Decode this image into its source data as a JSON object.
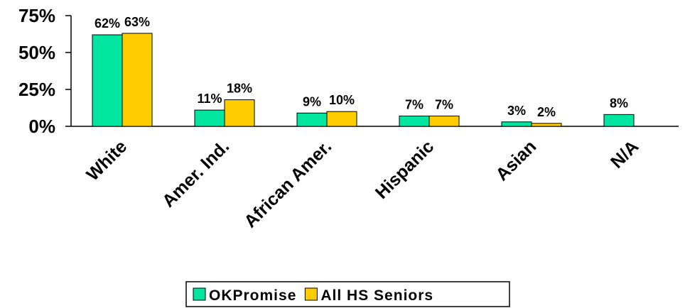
{
  "chart_data": {
    "type": "bar",
    "categories": [
      "White",
      "Amer. Ind.",
      "African Amer.",
      "Hispanic",
      "Asian",
      "N/A"
    ],
    "series": [
      {
        "name": "OKPromise",
        "color": "#00e6a0",
        "values": [
          62,
          11,
          9,
          7,
          3,
          8
        ],
        "value_labels": [
          "62%",
          "11%",
          "9%",
          "7%",
          "3%",
          "8%"
        ]
      },
      {
        "name": "All HS Seniors",
        "color": "#ffcc00",
        "values": [
          63,
          18,
          10,
          7,
          2,
          null
        ],
        "value_labels": [
          "63%",
          "18%",
          "10%",
          "7%",
          "2%",
          null
        ]
      }
    ],
    "ylim": [
      0,
      75
    ],
    "yticks": [
      {
        "value": 0,
        "label": "0%"
      },
      {
        "value": 25,
        "label": "25%"
      },
      {
        "value": 50,
        "label": "50%"
      },
      {
        "value": 75,
        "label": "75%"
      }
    ],
    "grid": false,
    "legend": "bottom"
  }
}
